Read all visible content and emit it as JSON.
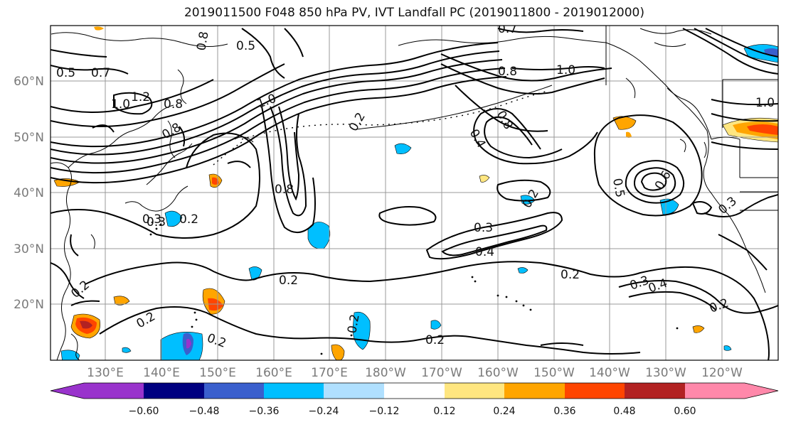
{
  "title": "2019011500 F048 850 hPa PV, IVT Landfall PC (2019011800 - 2019012000)",
  "lat_labels": [
    "60°N",
    "50°N",
    "40°N",
    "30°N",
    "20°N"
  ],
  "lon_labels": [
    "130°E",
    "140°E",
    "150°E",
    "160°E",
    "170°E",
    "180°W",
    "170°W",
    "160°W",
    "150°W",
    "140°W",
    "130°W",
    "120°W"
  ],
  "contour_labels": [
    "0.5",
    "0.7",
    "1.0",
    "1.2",
    "0.8",
    "0.8",
    "0.5",
    "0.8",
    "1.0",
    "0.2",
    "0.4",
    "0.8",
    "0.8",
    "1.0",
    "0.7",
    "1.0",
    "0.2",
    "0.3",
    "0.8",
    "0.3",
    "0.4",
    "0.3",
    "0.5",
    "0.6",
    "0.2",
    "0.2",
    "0.2",
    "0.2",
    "0.3",
    "0.4",
    "0.2",
    "0.2",
    "0.2",
    "0.2",
    "0.2",
    "0.3"
  ],
  "colorbar": {
    "tick_labels": [
      "−0.60",
      "−0.48",
      "−0.36",
      "−0.24",
      "−0.12",
      "0.12",
      "0.24",
      "0.36",
      "0.48",
      "0.60"
    ],
    "colors": [
      "#9933cc",
      "#000080",
      "#3a5fcd",
      "#00bfff",
      "#b0e0ff",
      "#ffffff",
      "#ffe680",
      "#ffa500",
      "#ff4500",
      "#b22222",
      "#ff88aa"
    ]
  },
  "colors": {
    "land_outline": "#000000",
    "grid": "#999999",
    "contour": "#000000"
  }
}
